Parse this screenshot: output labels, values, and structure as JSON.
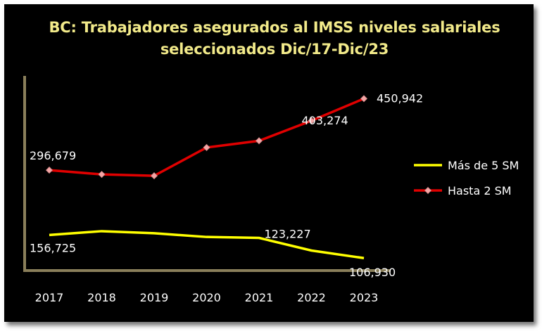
{
  "chart_data": {
    "type": "line",
    "title_lines": [
      "BC: Trabajadores  asegurados al IMSS niveles salariales",
      "seleccionados Dic/17-Dic/23"
    ],
    "categories": [
      "2017",
      "2018",
      "2019",
      "2020",
      "2021",
      "2022",
      "2023"
    ],
    "series": [
      {
        "name": "Más de 5 SM",
        "values": [
          156725,
          165000,
          160500,
          152500,
          150500,
          123227,
          106930
        ],
        "color": "#ffff00",
        "marker": "none"
      },
      {
        "name": "Hasta 2 SM",
        "values": [
          296679,
          287500,
          284500,
          345500,
          360000,
          403274,
          450942
        ],
        "color": "#e00000",
        "marker": "diamond",
        "marker_color": "#f4a6a6"
      }
    ],
    "data_labels": [
      {
        "series": 1,
        "index": 0,
        "text": "296,679"
      },
      {
        "series": 1,
        "index": 5,
        "text": "403,274"
      },
      {
        "series": 1,
        "index": 6,
        "text": "450,942"
      },
      {
        "series": 0,
        "index": 0,
        "text": "156,725"
      },
      {
        "series": 0,
        "index": 5,
        "text": "123,227"
      },
      {
        "series": 0,
        "index": 6,
        "text": "106,930"
      }
    ],
    "ylim": [
      80000,
      500000
    ],
    "grid": false,
    "legend_position": "right",
    "background": "#000000",
    "axis_color": "#8a7f5a",
    "title_color": "#f2ea8a"
  }
}
